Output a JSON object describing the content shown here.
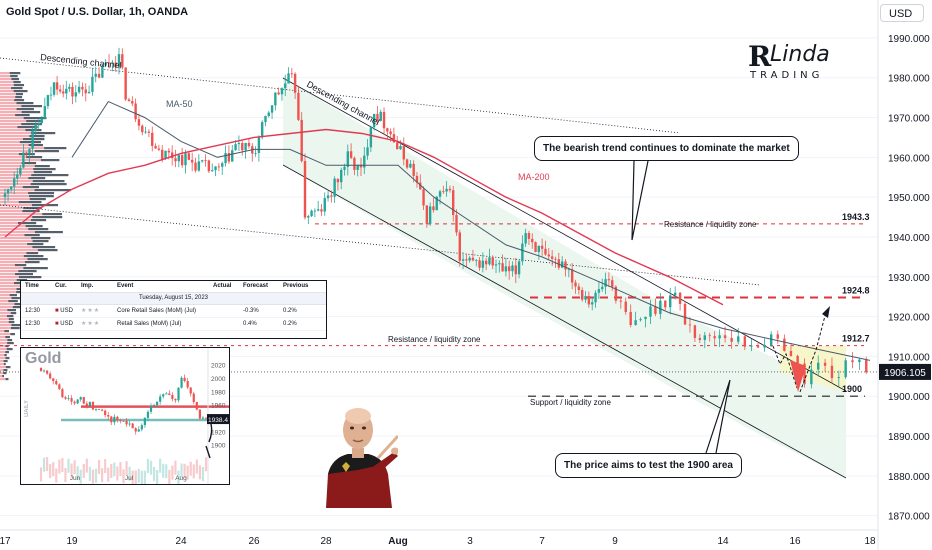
{
  "header": {
    "title": "Gold Spot / U.S. Dollar, 1h, OANDA",
    "currency": "USD"
  },
  "logo": {
    "line1": "R",
    "line2": "Linda",
    "line3": "TRADING"
  },
  "colors": {
    "bull": "#26a69a",
    "bear": "#ef5350",
    "ma50": "#4a5a6a",
    "ma200": "#e03a52",
    "resistance": "#e0323e",
    "support": "#555555",
    "zone_fill": "#e8f5ec",
    "target_fill": "#f7f6c8"
  },
  "chart_data": {
    "type": "candlestick",
    "title": "Gold Spot / U.S. Dollar, 1h, OANDA",
    "y_axis": {
      "min": 1865,
      "max": 1995,
      "ticks": [
        1990,
        1980,
        1970,
        1960,
        1950,
        1940,
        1930,
        1920,
        1910,
        1900,
        1890,
        1880,
        1870
      ],
      "tick_labels": [
        "1990.000",
        "1980.000",
        "1970.000",
        "1960.000",
        "1950.000",
        "1940.000",
        "1930.000",
        "1920.000",
        "1910.000",
        "1900.000",
        "1890.000",
        "1880.000",
        "1870.000"
      ]
    },
    "x_axis": {
      "min": 0,
      "max": 21,
      "ticks": [
        0,
        2,
        5,
        7,
        9,
        11,
        13,
        15,
        17,
        19,
        20,
        21
      ],
      "tick_labels": [
        "17",
        "19",
        "24",
        "26",
        "28",
        "Aug",
        "3",
        "7",
        "9",
        "14",
        "16",
        "18"
      ]
    },
    "last_price": {
      "value": 1906.105,
      "label": "1906.105"
    },
    "key_points": [
      [
        0.0,
        1950
      ],
      [
        0.5,
        1960
      ],
      [
        1.0,
        1968
      ],
      [
        1.5,
        1979
      ],
      [
        2.0,
        1976
      ],
      [
        2.5,
        1978
      ],
      [
        3.0,
        1984
      ],
      [
        3.3,
        1985
      ],
      [
        3.5,
        1975
      ],
      [
        4.0,
        1967
      ],
      [
        4.5,
        1961
      ],
      [
        5.0,
        1960
      ],
      [
        5.5,
        1958
      ],
      [
        6.0,
        1956
      ],
      [
        6.5,
        1963
      ],
      [
        7.0,
        1961
      ],
      [
        7.5,
        1974
      ],
      [
        8.0,
        1980
      ],
      [
        8.2,
        1976
      ],
      [
        8.4,
        1946
      ],
      [
        8.8,
        1946
      ],
      [
        9.2,
        1952
      ],
      [
        9.6,
        1960
      ],
      [
        10.0,
        1956
      ],
      [
        10.3,
        1972
      ],
      [
        10.7,
        1968
      ],
      [
        11.0,
        1962
      ],
      [
        11.4,
        1957
      ],
      [
        11.8,
        1945
      ],
      [
        12.2,
        1951
      ],
      [
        12.5,
        1950
      ],
      [
        12.7,
        1934
      ],
      [
        13.1,
        1933
      ],
      [
        13.5,
        1934
      ],
      [
        14.0,
        1931
      ],
      [
        14.3,
        1931
      ],
      [
        14.5,
        1942
      ],
      [
        14.8,
        1938
      ],
      [
        15.2,
        1933
      ],
      [
        15.6,
        1934
      ],
      [
        16.0,
        1927
      ],
      [
        16.4,
        1924
      ],
      [
        16.8,
        1930
      ],
      [
        17.0,
        1926
      ],
      [
        17.3,
        1917
      ],
      [
        17.7,
        1922
      ],
      [
        18.1,
        1926
      ],
      [
        18.3,
        1919
      ],
      [
        18.6,
        1914
      ],
      [
        19.0,
        1916
      ],
      [
        19.3,
        1913
      ],
      [
        19.6,
        1914
      ],
      [
        19.9,
        1913
      ],
      [
        20.1,
        1904
      ],
      [
        20.3,
        1908
      ],
      [
        20.6,
        1905
      ],
      [
        20.8,
        1911
      ],
      [
        21.0,
        1906
      ]
    ],
    "series": [
      {
        "name": "MA-50",
        "points": [
          [
            2,
            1960
          ],
          [
            3,
            1974
          ],
          [
            4,
            1970
          ],
          [
            5,
            1964
          ],
          [
            6,
            1960
          ],
          [
            7,
            1962
          ],
          [
            8,
            1962
          ],
          [
            9,
            1958
          ],
          [
            10,
            1958
          ],
          [
            11,
            1958
          ],
          [
            12,
            1950
          ],
          [
            13,
            1944
          ],
          [
            14,
            1938
          ],
          [
            15,
            1935
          ],
          [
            16,
            1931
          ],
          [
            17,
            1927
          ],
          [
            18,
            1921
          ],
          [
            19,
            1917
          ],
          [
            20,
            1913
          ],
          [
            21,
            1909
          ]
        ]
      },
      {
        "name": "MA-200",
        "points": [
          [
            0,
            1940
          ],
          [
            1,
            1947
          ],
          [
            2,
            1952
          ],
          [
            3,
            1956
          ],
          [
            4,
            1958
          ],
          [
            5,
            1961
          ],
          [
            6,
            1963
          ],
          [
            7,
            1965
          ],
          [
            8,
            1966
          ],
          [
            9,
            1967
          ],
          [
            10,
            1966
          ],
          [
            11,
            1964
          ],
          [
            12,
            1960
          ],
          [
            13,
            1955
          ],
          [
            14,
            1950
          ],
          [
            15,
            1946
          ],
          [
            16,
            1941
          ],
          [
            17,
            1936
          ],
          [
            18,
            1930
          ],
          [
            19,
            1923
          ]
        ]
      }
    ],
    "levels": [
      {
        "label": "1943.3",
        "value": 1943.3,
        "zone_label": "Resistance / liquidity zone"
      },
      {
        "label": "1924.8",
        "value": 1924.8
      },
      {
        "label": "1912.7",
        "value": 1912.7,
        "zone_label": "Resistance / liquidity zone"
      },
      {
        "label": "1900",
        "value": 1900,
        "zone_label": "Support / liquidity zone"
      }
    ],
    "channel_labels": [
      "Descending channel",
      "Descending channel"
    ],
    "annotations": [
      "MA-50",
      "MA-200"
    ]
  },
  "callouts": {
    "top": "The bearish trend continues to dominate the market",
    "bottom": "The price aims to test the 1900 area"
  },
  "events": {
    "headers": [
      "Time",
      "Cur.",
      "Imp.",
      "Event",
      "Actual",
      "Forecast",
      "Previous"
    ],
    "date": "Tuesday, August 15, 2023",
    "rows": [
      {
        "time": "12:30",
        "cur": "USD",
        "event": "Core Retail Sales (MoM) (Jul)",
        "actual": "",
        "forecast": "-0.3%",
        "previous": "0.2%"
      },
      {
        "time": "12:30",
        "cur": "USD",
        "event": "Retail Sales (MoM) (Jul)",
        "actual": "",
        "forecast": "0.4%",
        "previous": "0.2%"
      }
    ]
  },
  "inset": {
    "title": "Gold",
    "timeframe": "DAILY",
    "y_ticks": [
      "2020",
      "2000",
      "1980",
      "1960",
      "1920",
      "1900"
    ],
    "x_ticks": [
      "Jun",
      "Jul",
      "Aug"
    ],
    "price_label": "1938.4",
    "chart_data": {
      "type": "candlestick",
      "y_min": 1895,
      "y_max": 2030,
      "key_points": [
        [
          0,
          2015
        ],
        [
          4,
          1985
        ],
        [
          8,
          1960
        ],
        [
          10,
          1968
        ],
        [
          14,
          1955
        ],
        [
          18,
          1938
        ],
        [
          22,
          1935
        ],
        [
          24,
          1915
        ],
        [
          26,
          1932
        ],
        [
          28,
          1960
        ],
        [
          32,
          1975
        ],
        [
          34,
          1965
        ],
        [
          36,
          2000
        ],
        [
          38,
          1978
        ],
        [
          40,
          1945
        ],
        [
          42,
          1935
        ]
      ],
      "resistance": 1957,
      "support": 1937
    }
  }
}
